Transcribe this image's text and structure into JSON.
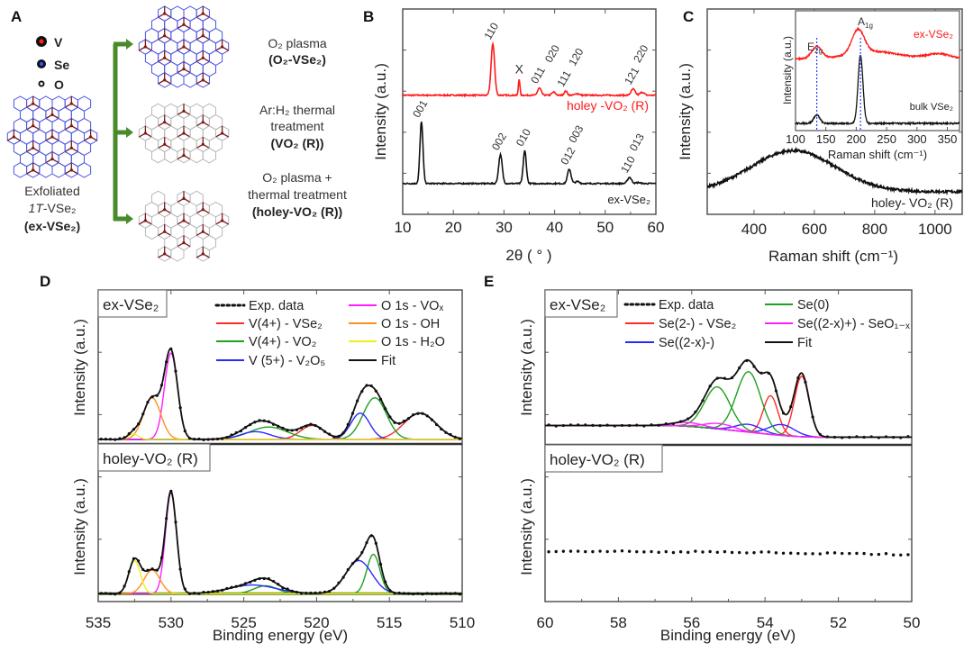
{
  "panel_letters": {
    "A": "A",
    "B": "B",
    "C": "C",
    "D": "D",
    "E": "E"
  },
  "diagram": {
    "legend": [
      {
        "label": "V",
        "color": "#ff2020"
      },
      {
        "label": "Se",
        "color": "#3050ff"
      },
      {
        "label": "O",
        "color": "#ffffff"
      }
    ],
    "source": {
      "line1": "Exfoliated",
      "line2_italic": "1T",
      "line2_rest": "-VSe₂",
      "line3": "(ex-VSe₂)"
    },
    "treatments": [
      {
        "lines": [
          "O₂ plasma"
        ],
        "bold": "(O₂-VSe₂)"
      },
      {
        "lines": [
          "Ar:H₂  thermal",
          "treatment"
        ],
        "bold": "(VO₂ (R))"
      },
      {
        "lines": [
          "O₂ plasma +",
          "thermal treatment"
        ],
        "bold": "(holey-VO₂ (R))"
      }
    ],
    "arrow_color": "#4a8a2a",
    "v_color": "#7a1a1a",
    "se_bond_color": "#4b55e0",
    "o_bond_color": "#b8b8b8"
  },
  "chart_data": [
    {
      "panel": "B",
      "type": "line",
      "xlabel": "2θ ( ° )",
      "ylabel": "Intensity (a.u.)",
      "xlim": [
        10,
        60
      ],
      "xticks": [
        10,
        20,
        30,
        40,
        50,
        60
      ],
      "ylim": [
        0,
        1
      ],
      "series": [
        {
          "name": "holey -VO₂ (R)",
          "color": "#ff1a1a",
          "baseline": 0.58,
          "peaks": [
            [
              27.8,
              0.25,
              0.35,
              "110"
            ],
            [
              33.0,
              0.08,
              0.15,
              "X"
            ],
            [
              37.0,
              0.035,
              0.35,
              "011"
            ],
            [
              39.8,
              0.015,
              0.35,
              "020"
            ],
            [
              42.2,
              0.02,
              0.3,
              "111"
            ],
            [
              44.5,
              0.008,
              0.4,
              "120"
            ],
            [
              55.5,
              0.03,
              0.4,
              "121"
            ],
            [
              57.3,
              0.015,
              0.4,
              "220"
            ]
          ]
        },
        {
          "name": "ex-VSe₂",
          "color": "#111111",
          "baseline": 0.15,
          "peaks": [
            [
              13.7,
              0.3,
              0.3,
              "001"
            ],
            [
              29.3,
              0.14,
              0.35,
              "002"
            ],
            [
              34.1,
              0.16,
              0.3,
              "010"
            ],
            [
              42.9,
              0.07,
              0.35,
              "012"
            ],
            [
              44.5,
              0.01,
              0.4,
              "003"
            ],
            [
              54.8,
              0.03,
              0.4,
              "110"
            ],
            [
              56.5,
              0.005,
              0.4,
              "013"
            ]
          ]
        }
      ]
    },
    {
      "panel": "C",
      "type": "line",
      "xlabel": "Raman shift (cm⁻¹)",
      "ylabel": "Intensity (a.u.)",
      "xlim": [
        245,
        1090
      ],
      "xticks": [
        400,
        600,
        800,
        1000
      ],
      "ylim": [
        0,
        1
      ],
      "series": [
        {
          "name": "holey- VO₂ (R)",
          "color": "#111111",
          "baseline": 0.11,
          "peaks": [
            [
              530,
              0.2,
              140
            ]
          ]
        }
      ],
      "inset": {
        "xlabel": "Raman shift (cm⁻¹)",
        "ylabel": "Intensity (a.u.)",
        "xlim": [
          100,
          370
        ],
        "xticks": [
          100,
          150,
          200,
          250,
          300,
          350
        ],
        "ylim": [
          0,
          1
        ],
        "markers": [
          {
            "x": 135,
            "label": "E",
            "sub": "2g"
          },
          {
            "x": 207,
            "label": "A",
            "sub": "1g"
          }
        ],
        "marker_color": "#2a3cff",
        "series": [
          {
            "name": "ex-VSe₂",
            "color": "#ff1a1a",
            "baseline": 0.6,
            "peaks": [
              [
                135,
                0.1,
                8
              ],
              [
                203,
                0.2,
                10
              ],
              [
                230,
                0.06,
                40
              ],
              [
                335,
                0.04,
                20
              ]
            ]
          },
          {
            "name": "bulk VSe₂",
            "color": "#111111",
            "baseline": 0.06,
            "peaks": [
              [
                135,
                0.07,
                5
              ],
              [
                207,
                0.57,
                4
              ]
            ]
          }
        ]
      }
    },
    {
      "panel": "D",
      "type": "line",
      "xlabel": "Binding energy (eV)",
      "ylabel": "Intensity (a.u.)",
      "xlim": [
        535,
        510
      ],
      "xticks": [
        535,
        530,
        525,
        520,
        515,
        510
      ],
      "legend": [
        {
          "name": "Exp. data",
          "color": "#111111",
          "style": "dotted"
        },
        {
          "name": "V(4+) - VSe₂",
          "color": "#ff2a2a"
        },
        {
          "name": "V(4+) - VO₂",
          "color": "#1fa01f"
        },
        {
          "name": "V (5+) - V₂O₅",
          "color": "#2a2aff"
        },
        {
          "name": "O 1s - VOₓ",
          "color": "#ff20ff"
        },
        {
          "name": "O 1s - OH",
          "color": "#ff9020"
        },
        {
          "name": "O 1s - H₂O",
          "color": "#f0f020"
        },
        {
          "name": "Fit",
          "color": "#111111"
        }
      ],
      "subplots": [
        {
          "sample": "ex-VSe₂",
          "baseline": 0.03,
          "ylim": [
            0,
            1
          ],
          "components": [
            {
              "name": "V(4+) - VSe₂",
              "peaks": [
                [
                  520.3,
                  0.09,
                  0.8
                ],
                [
                  512.9,
                  0.17,
                  1.1
                ]
              ]
            },
            {
              "name": "V(4+) - VO₂",
              "peaks": [
                [
                  523.3,
                  0.08,
                  1.3
                ],
                [
                  516.0,
                  0.27,
                  0.8
                ]
              ]
            },
            {
              "name": "V (5+) - V₂O₅",
              "peaks": [
                [
                  524.2,
                  0.05,
                  1.0
                ],
                [
                  517.0,
                  0.17,
                  0.65
                ]
              ]
            },
            {
              "name": "O 1s - VOₓ",
              "peaks": [
                [
                  530.0,
                  0.56,
                  0.45
                ]
              ]
            },
            {
              "name": "O 1s - OH",
              "peaks": [
                [
                  531.3,
                  0.27,
                  0.6
                ]
              ]
            },
            {
              "name": "O 1s - H₂O",
              "peaks": [
                [
                  532.6,
                  0.035,
                  0.35
                ]
              ]
            }
          ]
        },
        {
          "sample": "holey-VO₂ (R)",
          "baseline": 0.05,
          "ylim": [
            0,
            1
          ],
          "baseline_color": "#4a7a10",
          "components": [
            {
              "name": "V(4+) - VO₂",
              "peaks": [
                [
                  523.5,
                  0.05,
                  0.8
                ],
                [
                  516.1,
                  0.25,
                  0.45
                ]
              ]
            },
            {
              "name": "V (5+) - V₂O₅",
              "peaks": [
                [
                  524.4,
                  0.055,
                  1.6
                ],
                [
                  517.1,
                  0.21,
                  0.9
                ]
              ]
            },
            {
              "name": "O 1s - VOₓ",
              "peaks": [
                [
                  530.0,
                  0.64,
                  0.38
                ]
              ]
            },
            {
              "name": "O 1s - OH",
              "peaks": [
                [
                  531.3,
                  0.15,
                  0.55
                ]
              ]
            },
            {
              "name": "O 1s - H₂O",
              "peaks": [
                [
                  532.5,
                  0.21,
                  0.4
                ]
              ]
            }
          ]
        }
      ]
    },
    {
      "panel": "E",
      "type": "line",
      "xlabel": "Binding energy (eV)",
      "ylabel": "Intensity (a.u.)",
      "xlim": [
        60,
        50
      ],
      "xticks": [
        60,
        58,
        56,
        54,
        52,
        50
      ],
      "legend": [
        {
          "name": "Exp. data",
          "color": "#111111",
          "style": "dotted"
        },
        {
          "name": "Se(2-) - VSe₂",
          "color": "#ff2a2a"
        },
        {
          "name": "Se((2-x)-)",
          "color": "#2a2aff"
        },
        {
          "name": "Se(0)",
          "color": "#1fa01f"
        },
        {
          "name": "Se((2-x)+) - SeO₁₋ₓ",
          "color": "#ff20ff"
        },
        {
          "name": "Fit",
          "color": "#111111"
        }
      ],
      "subplots": [
        {
          "sample": "ex-VSe₂",
          "baseline_high": 0.125,
          "baseline_low": 0.05,
          "ylim": [
            0,
            1
          ],
          "components": [
            {
              "name": "Se(2-) - VSe₂",
              "peaks": [
                [
                  53.85,
                  0.25,
                  0.2
                ],
                [
                  53.0,
                  0.39,
                  0.2
                ]
              ]
            },
            {
              "name": "Se((2-x)-)",
              "peaks": [
                [
                  54.45,
                  0.05,
                  0.35
                ],
                [
                  53.55,
                  0.07,
                  0.35
                ]
              ]
            },
            {
              "name": "Se(0)",
              "peaks": [
                [
                  55.3,
                  0.27,
                  0.35
                ],
                [
                  54.45,
                  0.39,
                  0.33
                ]
              ]
            },
            {
              "name": "Se((2-x)+) - SeO₁₋ₓ",
              "peaks": [
                [
                  56.1,
                  0.025,
                  0.4
                ],
                [
                  55.25,
                  0.035,
                  0.4
                ]
              ]
            }
          ]
        },
        {
          "sample": "holey-VO₂ (R)",
          "ylim": [
            0,
            1
          ],
          "flat_level": [
            0.32,
            0.3
          ]
        }
      ]
    }
  ]
}
